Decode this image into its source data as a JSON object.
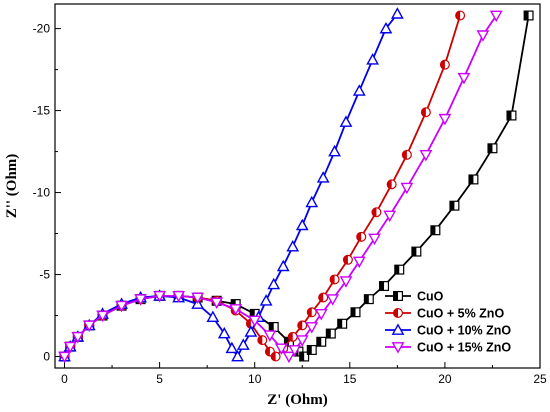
{
  "chart_data": {
    "type": "scatter",
    "title": "",
    "xlabel": "Z' (Ohm)",
    "ylabel": "Z'' (Ohm)",
    "xlim": [
      -0.5,
      25
    ],
    "ylim": [
      0.7,
      -21.5
    ],
    "y_axis_inverted": true,
    "x_ticks": [
      0,
      5,
      10,
      15,
      20,
      25
    ],
    "y_ticks": [
      0,
      -5,
      -10,
      -15,
      -20
    ],
    "grid": false,
    "legend_position": "bottom-right",
    "series": [
      {
        "name": "CuO",
        "color": "#000000",
        "marker": "half-filled-square",
        "x": [
          0.0,
          0.3,
          0.7,
          1.3,
          2.0,
          3.0,
          4.0,
          5.0,
          6.0,
          7.0,
          8.0,
          9.0,
          10.0,
          11.0,
          11.8,
          12.3,
          12.6,
          13.0,
          13.5,
          14.0,
          14.6,
          15.3,
          16.0,
          16.8,
          17.6,
          18.5,
          19.5,
          20.5,
          21.5,
          22.5,
          23.5,
          24.4
        ],
        "y": [
          0.0,
          -0.6,
          -1.2,
          -1.9,
          -2.5,
          -3.1,
          -3.5,
          -3.7,
          -3.7,
          -3.6,
          -3.4,
          -3.2,
          -2.6,
          -1.8,
          -0.9,
          -0.3,
          0.0,
          -0.4,
          -0.9,
          -1.4,
          -2.0,
          -2.7,
          -3.5,
          -4.3,
          -5.3,
          -6.4,
          -7.7,
          -9.2,
          -10.8,
          -12.7,
          -14.7,
          -20.8
        ]
      },
      {
        "name": "CuO + 5% ZnO",
        "color": "#cc0000",
        "marker": "half-filled-circle",
        "x": [
          0.0,
          0.3,
          0.7,
          1.3,
          2.0,
          3.0,
          4.0,
          5.0,
          6.0,
          7.0,
          8.0,
          9.0,
          9.8,
          10.4,
          10.8,
          11.1,
          11.5,
          12.0,
          12.5,
          13.0,
          13.6,
          14.2,
          14.9,
          15.6,
          16.4,
          17.2,
          18.0,
          19.0,
          20.0,
          20.8
        ],
        "y": [
          0.0,
          -0.6,
          -1.2,
          -1.9,
          -2.5,
          -3.1,
          -3.5,
          -3.7,
          -3.7,
          -3.6,
          -3.4,
          -2.8,
          -2.0,
          -1.0,
          -0.3,
          0.0,
          -0.5,
          -1.2,
          -1.9,
          -2.7,
          -3.6,
          -4.7,
          -5.9,
          -7.3,
          -8.8,
          -10.5,
          -12.3,
          -14.9,
          -17.8,
          -20.8
        ]
      },
      {
        "name": "CuO + 10% ZnO",
        "color": "#0000ee",
        "marker": "open-triangle-up",
        "x": [
          0.0,
          0.3,
          0.7,
          1.3,
          2.0,
          3.0,
          4.0,
          5.0,
          6.0,
          7.0,
          7.8,
          8.4,
          8.8,
          9.1,
          9.4,
          9.8,
          10.2,
          10.6,
          11.0,
          11.5,
          12.0,
          12.5,
          13.0,
          13.6,
          14.2,
          14.8,
          15.5,
          16.2,
          16.9,
          17.5
        ],
        "y": [
          0.0,
          -0.6,
          -1.2,
          -1.9,
          -2.6,
          -3.2,
          -3.6,
          -3.7,
          -3.6,
          -3.2,
          -2.4,
          -1.4,
          -0.5,
          0.0,
          -0.7,
          -1.5,
          -2.4,
          -3.4,
          -4.4,
          -5.5,
          -6.7,
          -8.0,
          -9.4,
          -10.9,
          -12.5,
          -14.3,
          -16.2,
          -18.1,
          -20.0,
          -20.9
        ]
      },
      {
        "name": "CuO + 15% ZnO",
        "color": "#cc00ff",
        "marker": "open-triangle-down",
        "x": [
          0.0,
          0.3,
          0.7,
          1.3,
          2.0,
          3.0,
          4.0,
          5.0,
          6.0,
          7.0,
          8.0,
          9.0,
          10.0,
          10.8,
          11.4,
          11.8,
          12.1,
          12.5,
          13.0,
          13.5,
          14.1,
          14.8,
          15.5,
          16.3,
          17.1,
          18.0,
          19.0,
          20.0,
          21.0,
          22.0,
          22.7
        ],
        "y": [
          0.0,
          -0.6,
          -1.2,
          -1.9,
          -2.5,
          -3.1,
          -3.5,
          -3.7,
          -3.7,
          -3.6,
          -3.3,
          -2.9,
          -2.2,
          -1.3,
          -0.5,
          0.0,
          -0.4,
          -1.0,
          -1.8,
          -2.6,
          -3.5,
          -4.6,
          -5.8,
          -7.2,
          -8.6,
          -10.3,
          -12.3,
          -14.5,
          -17.0,
          -19.6,
          -20.8
        ]
      }
    ]
  }
}
